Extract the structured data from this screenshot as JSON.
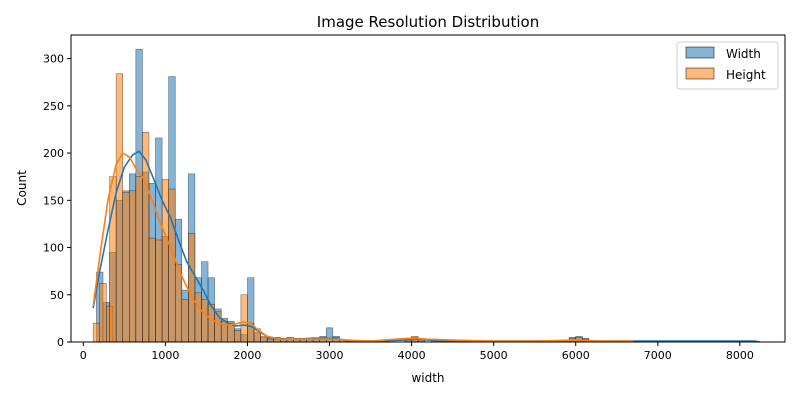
{
  "chart_data": {
    "type": "bar",
    "title": "Image Resolution Distribution",
    "xlabel": "width",
    "ylabel": "Count",
    "xlim": [
      -150,
      8550
    ],
    "ylim": [
      0,
      325
    ],
    "xticks": [
      0,
      1000,
      2000,
      3000,
      4000,
      5000,
      6000,
      7000,
      8000
    ],
    "yticks": [
      0,
      50,
      100,
      150,
      200,
      250,
      300
    ],
    "grid": false,
    "legend": "top-right",
    "bin_width": 80,
    "series": [
      {
        "name": "Width",
        "color": "#1f77b4",
        "bins": [
          [
            160,
            74
          ],
          [
            240,
            42
          ],
          [
            320,
            95
          ],
          [
            400,
            150
          ],
          [
            480,
            160
          ],
          [
            560,
            178
          ],
          [
            640,
            310
          ],
          [
            720,
            180
          ],
          [
            800,
            168
          ],
          [
            880,
            216
          ],
          [
            960,
            112
          ],
          [
            1040,
            281
          ],
          [
            1120,
            130
          ],
          [
            1200,
            55
          ],
          [
            1280,
            178
          ],
          [
            1360,
            68
          ],
          [
            1440,
            85
          ],
          [
            1520,
            68
          ],
          [
            1600,
            35
          ],
          [
            1680,
            25
          ],
          [
            1760,
            22
          ],
          [
            1840,
            14
          ],
          [
            1920,
            8
          ],
          [
            2000,
            68
          ],
          [
            2080,
            10
          ],
          [
            2160,
            5
          ],
          [
            2240,
            4
          ],
          [
            2320,
            5
          ],
          [
            2400,
            4
          ],
          [
            2480,
            5
          ],
          [
            2560,
            4
          ],
          [
            2640,
            4
          ],
          [
            2720,
            3
          ],
          [
            2800,
            4
          ],
          [
            2880,
            6
          ],
          [
            2960,
            15
          ],
          [
            3040,
            6
          ],
          [
            3120,
            2
          ],
          [
            3200,
            1
          ],
          [
            3280,
            1
          ],
          [
            3920,
            3
          ],
          [
            4000,
            5
          ],
          [
            4080,
            3
          ],
          [
            4240,
            3
          ],
          [
            4320,
            2
          ],
          [
            5200,
            1
          ],
          [
            5920,
            5
          ],
          [
            6000,
            6
          ],
          [
            6080,
            4
          ],
          [
            6240,
            1
          ],
          [
            8160,
            1
          ]
        ],
        "kde": [
          [
            120,
            36
          ],
          [
            200,
            75
          ],
          [
            300,
            118
          ],
          [
            400,
            158
          ],
          [
            500,
            185
          ],
          [
            600,
            198
          ],
          [
            680,
            202
          ],
          [
            760,
            193
          ],
          [
            860,
            172
          ],
          [
            960,
            150
          ],
          [
            1060,
            132
          ],
          [
            1160,
            108
          ],
          [
            1260,
            85
          ],
          [
            1360,
            70
          ],
          [
            1460,
            55
          ],
          [
            1560,
            38
          ],
          [
            1660,
            26
          ],
          [
            1760,
            20
          ],
          [
            1860,
            17
          ],
          [
            1960,
            18
          ],
          [
            2060,
            16
          ],
          [
            2160,
            10
          ],
          [
            2260,
            5
          ],
          [
            2400,
            3
          ],
          [
            2600,
            3
          ],
          [
            2800,
            4
          ],
          [
            2940,
            4
          ],
          [
            3100,
            3
          ],
          [
            3300,
            1
          ],
          [
            3600,
            1
          ],
          [
            3900,
            2
          ],
          [
            4050,
            3
          ],
          [
            4200,
            2
          ],
          [
            4500,
            1
          ],
          [
            5000,
            1
          ],
          [
            5500,
            1
          ],
          [
            6000,
            1
          ],
          [
            6500,
            1
          ],
          [
            7000,
            1
          ],
          [
            7500,
            1
          ],
          [
            8000,
            1
          ],
          [
            8200,
            1
          ]
        ]
      },
      {
        "name": "Height",
        "color": "#ff7f0e",
        "bins": [
          [
            120,
            20
          ],
          [
            200,
            62
          ],
          [
            280,
            38
          ],
          [
            320,
            175
          ],
          [
            400,
            284
          ],
          [
            480,
            158
          ],
          [
            560,
            160
          ],
          [
            640,
            175
          ],
          [
            720,
            222
          ],
          [
            800,
            110
          ],
          [
            880,
            108
          ],
          [
            960,
            172
          ],
          [
            1040,
            162
          ],
          [
            1120,
            82
          ],
          [
            1200,
            45
          ],
          [
            1280,
            115
          ],
          [
            1360,
            52
          ],
          [
            1440,
            45
          ],
          [
            1520,
            40
          ],
          [
            1600,
            32
          ],
          [
            1680,
            22
          ],
          [
            1760,
            20
          ],
          [
            1840,
            12
          ],
          [
            1920,
            50
          ],
          [
            2000,
            20
          ],
          [
            2080,
            14
          ],
          [
            2160,
            6
          ],
          [
            2240,
            3
          ],
          [
            2320,
            3
          ],
          [
            2400,
            3
          ],
          [
            2480,
            3
          ],
          [
            2560,
            3
          ],
          [
            2640,
            3
          ],
          [
            2720,
            3
          ],
          [
            2800,
            3
          ],
          [
            2880,
            3
          ],
          [
            2960,
            4
          ],
          [
            3040,
            5
          ],
          [
            3120,
            2
          ],
          [
            3200,
            1
          ],
          [
            3280,
            1
          ],
          [
            3920,
            3
          ],
          [
            4000,
            6
          ],
          [
            4080,
            3
          ],
          [
            4240,
            2
          ],
          [
            4320,
            2
          ],
          [
            5200,
            1
          ],
          [
            5920,
            4
          ],
          [
            6000,
            5
          ],
          [
            6080,
            3
          ],
          [
            6240,
            1
          ]
        ],
        "kde": [
          [
            120,
            38
          ],
          [
            200,
            90
          ],
          [
            300,
            150
          ],
          [
            400,
            188
          ],
          [
            480,
            200
          ],
          [
            560,
            196
          ],
          [
            640,
            184
          ],
          [
            740,
            172
          ],
          [
            840,
            150
          ],
          [
            940,
            125
          ],
          [
            1040,
            105
          ],
          [
            1140,
            82
          ],
          [
            1240,
            62
          ],
          [
            1340,
            45
          ],
          [
            1440,
            33
          ],
          [
            1540,
            25
          ],
          [
            1640,
            20
          ],
          [
            1740,
            18
          ],
          [
            1840,
            19
          ],
          [
            1940,
            21
          ],
          [
            2040,
            20
          ],
          [
            2140,
            12
          ],
          [
            2240,
            6
          ],
          [
            2400,
            3
          ],
          [
            2600,
            3
          ],
          [
            2800,
            3
          ],
          [
            3000,
            3
          ],
          [
            3200,
            2
          ],
          [
            3500,
            1
          ],
          [
            3800,
            3
          ],
          [
            4000,
            4
          ],
          [
            4200,
            3
          ],
          [
            4500,
            2
          ],
          [
            5000,
            1
          ],
          [
            5500,
            1
          ],
          [
            6000,
            2
          ],
          [
            6300,
            1
          ],
          [
            6700,
            1
          ]
        ]
      }
    ]
  }
}
